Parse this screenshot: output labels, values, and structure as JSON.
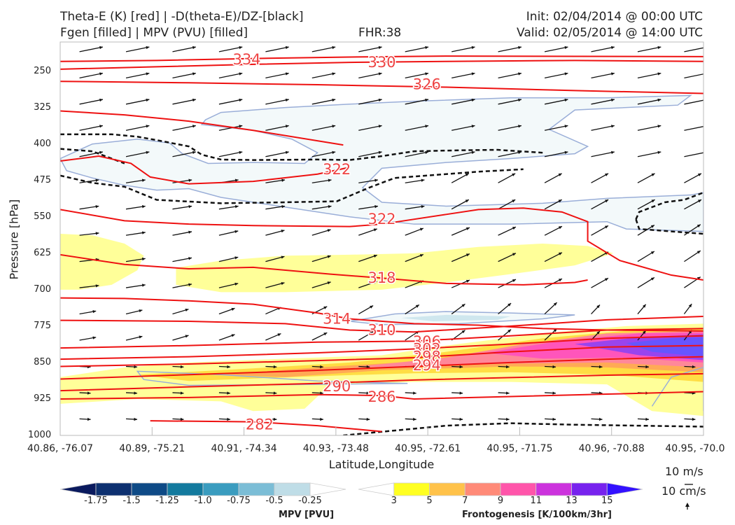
{
  "header": {
    "title_line1": "Theta-E (K) [red] | -D(theta-E)/DZ-[black]",
    "title_line2": "Fgen [filled] | MPV (PVU) [filled]",
    "fhr": "FHR:38",
    "init": "Init: 02/04/2014 @ 00:00 UTC",
    "valid": "Valid: 02/05/2014 @ 14:00 UTC"
  },
  "colors": {
    "theta_e": "#ee1111",
    "ddz": "#111111",
    "mpv_outline": "#9aaed8",
    "mpv_fill_light": "#f3f9fa",
    "mpv_fill_mid": "#cfe7ee",
    "fgen_3": "#ffff99",
    "fgen_5": "#ffdd44",
    "fgen_7": "#ffaa55",
    "fgen_9": "#ff8899",
    "fgen_11": "#ff55bb",
    "fgen_13": "#9944ee",
    "fgen_15": "#6655ff"
  },
  "chart_data": {
    "type": "cross-section",
    "xlabel": "Latitude,Longitude",
    "ylabel": "Pressure [hPa]",
    "x_ticks": [
      "40.86, -76.07",
      "40.89, -75.21",
      "40.91, -74.34",
      "40.93, -73.48",
      "40.95, -72.61",
      "40.95, -71.75",
      "40.96, -70.88",
      "40.95, -70.0"
    ],
    "y_ticks": [
      250,
      325,
      400,
      475,
      550,
      625,
      700,
      775,
      850,
      925,
      1000
    ],
    "ylim": [
      1000,
      190
    ],
    "theta_e_labels": [
      334,
      330,
      326,
      322,
      322,
      318,
      314,
      310,
      306,
      302,
      298,
      294,
      290,
      286,
      282
    ],
    "theta_e_lines": [
      {
        "value": 334,
        "points": [
          [
            0,
            230
          ],
          [
            0.15,
            228
          ],
          [
            0.3,
            224
          ],
          [
            0.45,
            221
          ],
          [
            0.6,
            219
          ],
          [
            1,
            220
          ]
        ]
      },
      {
        "value": 330,
        "points": [
          [
            0,
            246
          ],
          [
            0.15,
            241
          ],
          [
            0.3,
            236
          ],
          [
            0.45,
            232
          ],
          [
            0.6,
            230
          ],
          [
            0.8,
            228
          ],
          [
            1,
            230
          ]
        ]
      },
      {
        "value": 326,
        "points": [
          [
            0,
            271
          ],
          [
            0.2,
            274
          ],
          [
            0.4,
            278
          ],
          [
            0.6,
            283
          ],
          [
            0.8,
            290
          ],
          [
            1,
            296
          ]
        ]
      },
      {
        "value": 322,
        "points": [
          [
            0,
            332
          ],
          [
            0.1,
            340
          ],
          [
            0.2,
            353
          ],
          [
            0.3,
            372
          ],
          [
            0.44,
            402
          ]
        ]
      },
      {
        "value": 322,
        "points": [
          [
            0,
            435
          ],
          [
            0.06,
            425
          ],
          [
            0.11,
            440
          ],
          [
            0.14,
            468
          ],
          [
            0.2,
            482
          ],
          [
            0.3,
            477
          ],
          [
            0.4,
            462
          ],
          [
            0.45,
            448
          ]
        ]
      },
      {
        "value": 322,
        "points": [
          [
            0,
            535
          ],
          [
            0.1,
            558
          ],
          [
            0.2,
            565
          ],
          [
            0.3,
            568
          ],
          [
            0.45,
            570
          ],
          [
            0.5,
            565
          ],
          [
            0.6,
            545
          ],
          [
            0.65,
            535
          ],
          [
            0.72,
            532
          ],
          [
            0.78,
            540
          ],
          [
            0.82,
            560
          ],
          [
            0.82,
            600
          ],
          [
            0.87,
            640
          ],
          [
            0.95,
            670
          ],
          [
            1,
            680
          ]
        ]
      },
      {
        "value": 318,
        "points": [
          [
            0,
            628
          ],
          [
            0.1,
            648
          ],
          [
            0.2,
            657
          ],
          [
            0.3,
            654
          ],
          [
            0.42,
            668
          ],
          [
            0.5,
            676
          ],
          [
            0.6,
            687
          ],
          [
            0.72,
            690
          ],
          [
            0.8,
            685
          ],
          [
            0.82,
            680
          ]
        ]
      },
      {
        "value": 314,
        "points": [
          [
            0,
            717
          ],
          [
            0.1,
            718
          ],
          [
            0.2,
            723
          ],
          [
            0.3,
            730
          ],
          [
            0.4,
            748
          ],
          [
            0.45,
            760
          ],
          [
            0.55,
            770
          ],
          [
            0.65,
            773
          ],
          [
            0.75,
            780
          ],
          [
            0.85,
            783
          ],
          [
            1,
            785
          ]
        ]
      },
      {
        "value": 310,
        "points": [
          [
            0,
            763
          ],
          [
            0.2,
            765
          ],
          [
            0.35,
            770
          ],
          [
            0.45,
            783
          ],
          [
            0.55,
            787
          ],
          [
            0.7,
            775
          ],
          [
            0.85,
            762
          ],
          [
            1,
            755
          ]
        ]
      },
      {
        "value": 306,
        "points": [
          [
            0,
            820
          ],
          [
            0.2,
            815
          ],
          [
            0.4,
            808
          ],
          [
            0.55,
            806
          ],
          [
            0.7,
            795
          ],
          [
            0.85,
            783
          ],
          [
            1,
            780
          ]
        ]
      },
      {
        "value": 302,
        "points": [
          [
            0,
            843
          ],
          [
            0.2,
            838
          ],
          [
            0.4,
            830
          ],
          [
            0.55,
            822
          ],
          [
            0.7,
            812
          ],
          [
            0.85,
            800
          ],
          [
            1,
            795
          ]
        ]
      },
      {
        "value": 298,
        "points": [
          [
            0,
            858
          ],
          [
            0.2,
            853
          ],
          [
            0.4,
            846
          ],
          [
            0.55,
            840
          ],
          [
            0.7,
            828
          ],
          [
            0.85,
            818
          ],
          [
            1,
            815
          ]
        ]
      },
      {
        "value": 294,
        "points": [
          [
            0,
            884
          ],
          [
            0.2,
            875
          ],
          [
            0.4,
            866
          ],
          [
            0.55,
            858
          ],
          [
            0.7,
            850
          ],
          [
            0.85,
            843
          ],
          [
            1,
            838
          ]
        ]
      },
      {
        "value": 290,
        "points": [
          [
            0,
            908
          ],
          [
            0.2,
            900
          ],
          [
            0.4,
            893
          ],
          [
            0.55,
            886
          ],
          [
            0.7,
            881
          ],
          [
            0.85,
            876
          ],
          [
            1,
            873
          ]
        ]
      },
      {
        "value": 286,
        "points": [
          [
            0,
            925
          ],
          [
            0.2,
            922
          ],
          [
            0.4,
            916
          ],
          [
            0.5,
            918
          ],
          [
            0.55,
            925
          ],
          [
            0.7,
            920
          ],
          [
            0.85,
            915
          ],
          [
            1,
            910
          ]
        ]
      },
      {
        "value": 282,
        "points": [
          [
            0.14,
            970
          ],
          [
            0.3,
            972
          ],
          [
            0.4,
            980
          ],
          [
            0.5,
            992
          ]
        ]
      }
    ],
    "ddz_lines": [
      [
        [
          0,
          380
        ],
        [
          0.08,
          380
        ],
        [
          0.12,
          385
        ],
        [
          0.15,
          392
        ],
        [
          0.2,
          405
        ],
        [
          0.22,
          422
        ],
        [
          0.25,
          432
        ],
        [
          0.3,
          433
        ],
        [
          0.4,
          432
        ],
        [
          0.45,
          433
        ],
        [
          0.5,
          425
        ],
        [
          0.55,
          415
        ],
        [
          0.62,
          413
        ],
        [
          0.68,
          412
        ],
        [
          0.75,
          418
        ]
      ],
      [
        [
          0,
          410
        ],
        [
          0.05,
          415
        ],
        [
          0.1,
          440
        ]
      ],
      [
        [
          0,
          465
        ],
        [
          0.05,
          480
        ],
        [
          0.1,
          488
        ],
        [
          0.15,
          515
        ],
        [
          0.25,
          522
        ],
        [
          0.35,
          520
        ],
        [
          0.43,
          518
        ],
        [
          0.48,
          490
        ],
        [
          0.52,
          470
        ],
        [
          0.6,
          462
        ],
        [
          0.65,
          457
        ],
        [
          0.72,
          452
        ]
      ],
      [
        [
          0.895,
          555
        ],
        [
          0.9,
          540
        ],
        [
          0.94,
          520
        ],
        [
          0.97,
          515
        ],
        [
          1,
          500
        ]
      ],
      [
        [
          0.895,
          555
        ],
        [
          0.9,
          575
        ],
        [
          0.95,
          580
        ],
        [
          1,
          585
        ]
      ],
      [
        [
          0.44,
          1000
        ],
        [
          0.6,
          980
        ],
        [
          0.7,
          975
        ],
        [
          0.8,
          978
        ],
        [
          1,
          982
        ]
      ]
    ],
    "mpv_colorbar": {
      "title": "MPV [PVU]",
      "ticks": [
        "-1.75",
        "-1.5",
        "-1.25",
        "-1.0",
        "-0.75",
        "-0.5",
        "-0.25"
      ],
      "colors": [
        "#0a1a5e",
        "#0d3070",
        "#0e4a86",
        "#137a9e",
        "#3a9cbf",
        "#7bbdd6",
        "#bfdde7",
        "#ffffff"
      ]
    },
    "fgen_colorbar": {
      "title": "Frontogenesis [K/100km/3hr]",
      "ticks": [
        "3",
        "5",
        "7",
        "9",
        "11",
        "13",
        "15"
      ],
      "colors": [
        "#ffffff",
        "#ffff22",
        "#ffc24a",
        "#ff8a78",
        "#ff55aa",
        "#cc33dd",
        "#7722ee",
        "#3311ff"
      ]
    }
  },
  "vector_key": {
    "horiz": "10 m/s",
    "vert": "10 cm/s"
  }
}
